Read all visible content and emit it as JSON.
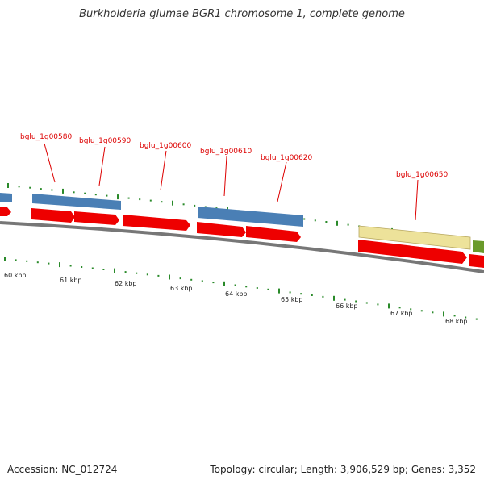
{
  "title": "Burkholderia glumae BGR1 chromosome 1, complete genome",
  "footer": {
    "accession": "Accession: NC_012724",
    "topology": "Topology: circular; Length: 3,906,529 bp; Genes: 3,352"
  },
  "gene_labels": [
    "bglu_1g00580",
    "bglu_1g00590",
    "bglu_1g00600",
    "bglu_1g00610",
    "bglu_1g00620",
    "bglu_1g00650"
  ],
  "kbp_labels": [
    "60 kbp",
    "61 kbp",
    "62 kbp",
    "63 kbp",
    "64 kbp",
    "65 kbp",
    "66 kbp",
    "67 kbp",
    "68 kbp"
  ],
  "colors": {
    "cds_red": "#ee0000",
    "gene_blue": "#4a7fb5",
    "gene_yellow": "#ede29a",
    "gene_green": "#6a9a2a",
    "label_red": "#dd0000",
    "tick_green": "#2a8a2a",
    "backbone_gray": "#777777"
  }
}
